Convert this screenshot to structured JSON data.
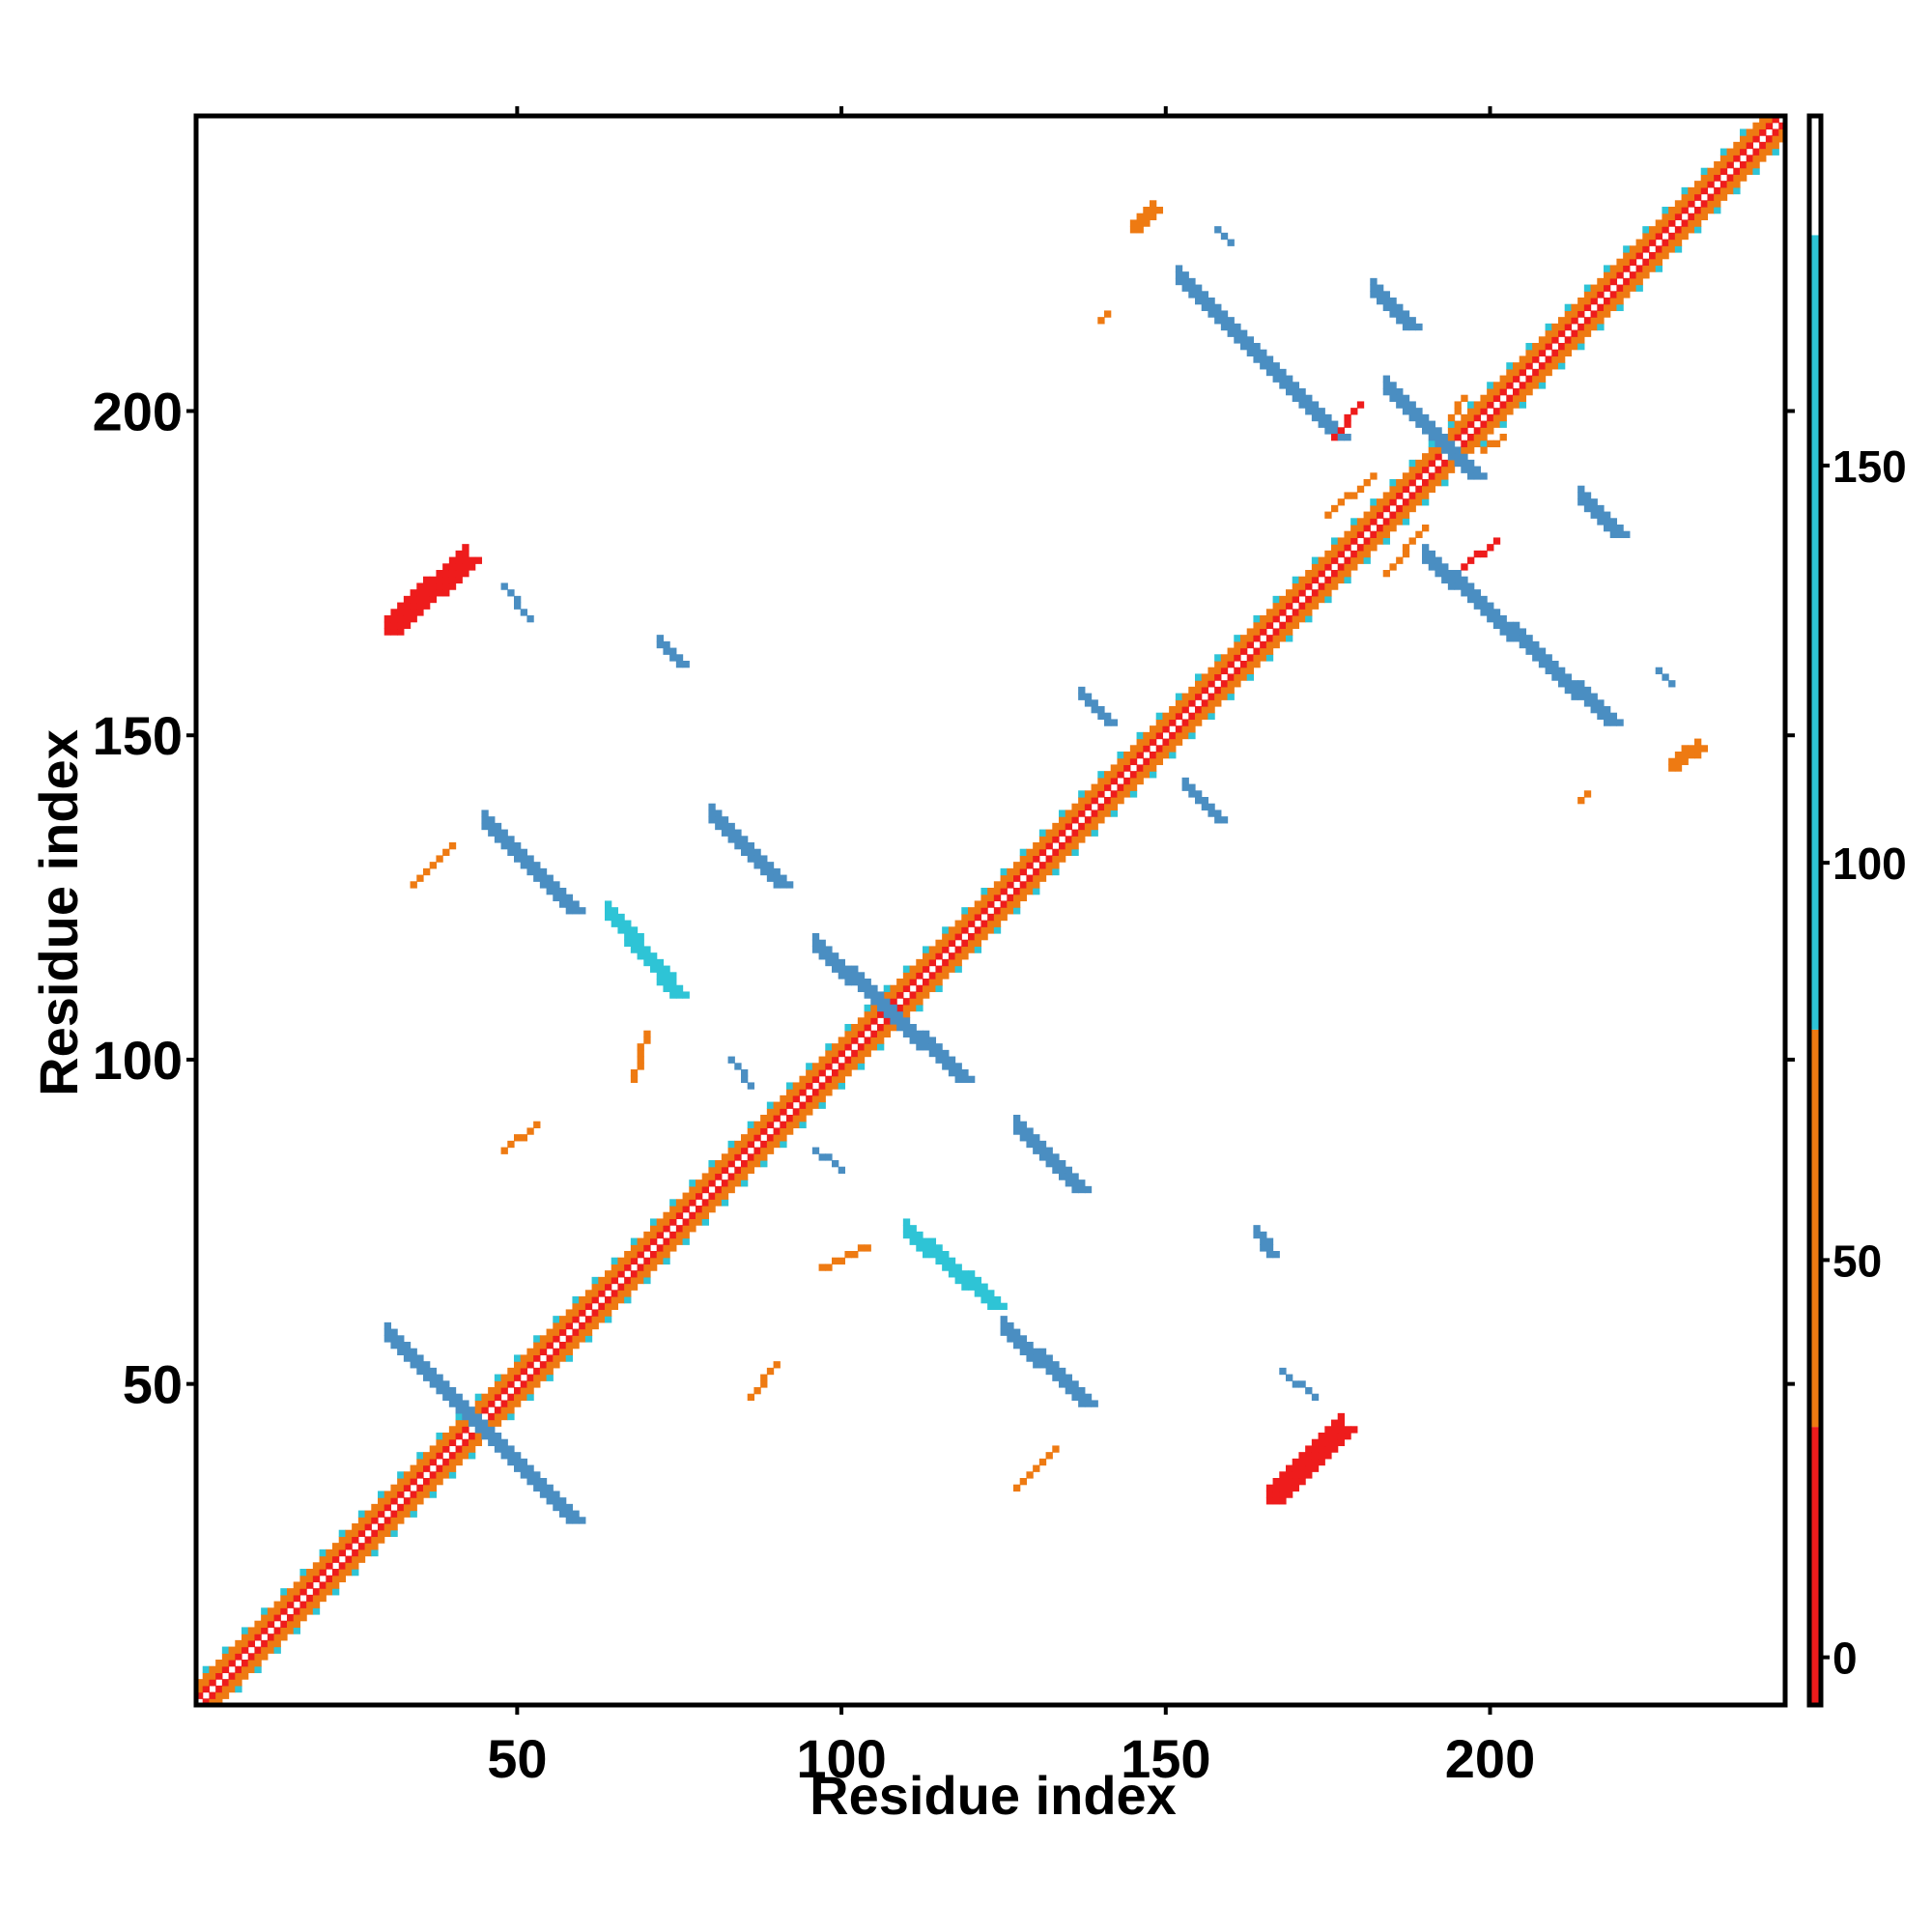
{
  "chart_data": {
    "type": "heatmap",
    "title": "",
    "xlabel": "Residue index",
    "ylabel": "Residue index",
    "xlim": [
      1,
      245
    ],
    "ylim": [
      1,
      245
    ],
    "x_ticks": [
      50,
      100,
      150,
      200
    ],
    "y_ticks": [
      50,
      100,
      150,
      200
    ],
    "grid": false,
    "colorbar": {
      "position": "right",
      "ticks": [
        0,
        50,
        100,
        150
      ],
      "range": [
        -6,
        194
      ],
      "segments": [
        {
          "from": -6,
          "to": 29,
          "color": "#ee1c1c"
        },
        {
          "from": 29,
          "to": 79,
          "color": "#ee7a12"
        },
        {
          "from": 79,
          "to": 179,
          "color": "#2ec4d6"
        },
        {
          "from": 179,
          "to": 194,
          "color": "#ffffff"
        }
      ]
    },
    "color_classes": [
      {
        "name": "red",
        "color": "#ee1c1c"
      },
      {
        "name": "orange",
        "color": "#ee7a12"
      },
      {
        "name": "cyan",
        "color": "#2ec4d6"
      },
      {
        "name": "steel",
        "color": "#4a8ec2"
      }
    ],
    "diagonal_band": {
      "from": 1,
      "to": 245,
      "halfwidth": 4
    },
    "regions": [
      {
        "color": "steel",
        "x1": 30,
        "y1": 57,
        "x2": 58,
        "y2": 29,
        "width": 3
      },
      {
        "color": "steel",
        "x1": 127,
        "y1": 89,
        "x2": 136,
        "y2": 80,
        "width": 3
      },
      {
        "color": "cyan",
        "x1": 110,
        "y1": 73,
        "x2": 123,
        "y2": 62,
        "width": 3
      },
      {
        "color": "steel",
        "x1": 125,
        "y1": 58,
        "x2": 137,
        "y2": 47,
        "width": 3
      },
      {
        "color": "steel",
        "x1": 45,
        "y1": 136,
        "x2": 58,
        "y2": 123,
        "width": 3
      },
      {
        "color": "cyan",
        "x1": 64,
        "y1": 122,
        "x2": 74,
        "y2": 110,
        "width": 3
      },
      {
        "color": "steel",
        "x1": 80,
        "y1": 137,
        "x2": 90,
        "y2": 127,
        "width": 3
      },
      {
        "color": "steel",
        "x1": 96,
        "y1": 117,
        "x2": 118,
        "y2": 97,
        "width": 3
      },
      {
        "color": "red",
        "x1": 30,
        "y1": 166,
        "x2": 42,
        "y2": 177,
        "width": 3
      },
      {
        "color": "red",
        "x1": 166,
        "y1": 32,
        "x2": 177,
        "y2": 43,
        "width": 3
      },
      {
        "color": "steel",
        "x1": 152,
        "y1": 220,
        "x2": 176,
        "y2": 196,
        "width": 3
      },
      {
        "color": "steel",
        "x1": 184,
        "y1": 203,
        "x2": 197,
        "y2": 190,
        "width": 3
      },
      {
        "color": "steel",
        "x1": 190,
        "y1": 177,
        "x2": 218,
        "y2": 152,
        "width": 3
      },
      {
        "color": "steel",
        "x1": 182,
        "y1": 218,
        "x2": 187,
        "y2": 213,
        "width": 3
      },
      {
        "color": "steel",
        "x1": 214,
        "y1": 186,
        "x2": 219,
        "y2": 181,
        "width": 3
      },
      {
        "color": "steel",
        "x1": 137,
        "y1": 156,
        "x2": 141,
        "y2": 152,
        "width": 2
      },
      {
        "color": "steel",
        "x1": 153,
        "y1": 142,
        "x2": 158,
        "y2": 137,
        "width": 2
      },
      {
        "color": "steel",
        "x1": 72,
        "y1": 164,
        "x2": 75,
        "y2": 161,
        "width": 2
      },
      {
        "color": "steel",
        "x1": 164,
        "y1": 73,
        "x2": 166,
        "y2": 70,
        "width": 2
      },
      {
        "color": "orange",
        "x1": 145,
        "y1": 228,
        "x2": 148,
        "y2": 231,
        "width": 2
      },
      {
        "color": "orange",
        "x1": 228,
        "y1": 145,
        "x2": 232,
        "y2": 148,
        "width": 2
      },
      {
        "color": "orange",
        "x1": 34,
        "y1": 127,
        "x2": 40,
        "y2": 133,
        "width": 1
      },
      {
        "color": "orange",
        "x1": 127,
        "y1": 34,
        "x2": 133,
        "y2": 40,
        "width": 1
      },
      {
        "color": "orange",
        "x1": 48,
        "y1": 86,
        "x2": 53,
        "y2": 90,
        "width": 1
      },
      {
        "color": "orange",
        "x1": 86,
        "y1": 48,
        "x2": 90,
        "y2": 53,
        "width": 1
      },
      {
        "color": "orange",
        "x1": 97,
        "y1": 68,
        "x2": 104,
        "y2": 71,
        "width": 1
      },
      {
        "color": "orange",
        "x1": 68,
        "y1": 97,
        "x2": 70,
        "y2": 104,
        "width": 1
      },
      {
        "color": "orange",
        "x1": 175,
        "y1": 184,
        "x2": 182,
        "y2": 190,
        "width": 1
      },
      {
        "color": "orange",
        "x1": 184,
        "y1": 175,
        "x2": 190,
        "y2": 182,
        "width": 1
      },
      {
        "color": "red",
        "x1": 196,
        "y1": 176,
        "x2": 201,
        "y2": 180,
        "width": 1
      },
      {
        "color": "red",
        "x1": 176,
        "y1": 196,
        "x2": 180,
        "y2": 201,
        "width": 1
      },
      {
        "color": "orange",
        "x1": 140,
        "y1": 214,
        "x2": 141,
        "y2": 215,
        "width": 1
      },
      {
        "color": "orange",
        "x1": 214,
        "y1": 140,
        "x2": 215,
        "y2": 141,
        "width": 1
      },
      {
        "color": "orange",
        "x1": 199,
        "y1": 194,
        "x2": 202,
        "y2": 196,
        "width": 1
      },
      {
        "color": "orange",
        "x1": 194,
        "y1": 199,
        "x2": 196,
        "y2": 202,
        "width": 1
      },
      {
        "color": "steel",
        "x1": 48,
        "y1": 173,
        "x2": 52,
        "y2": 168,
        "width": 1
      },
      {
        "color": "steel",
        "x1": 173,
        "y1": 48,
        "x2": 168,
        "y2": 52,
        "width": 1
      },
      {
        "color": "steel",
        "x1": 83,
        "y1": 100,
        "x2": 86,
        "y2": 96,
        "width": 1
      },
      {
        "color": "steel",
        "x1": 100,
        "y1": 83,
        "x2": 96,
        "y2": 86,
        "width": 1
      },
      {
        "color": "steel",
        "x1": 158,
        "y1": 228,
        "x2": 160,
        "y2": 226,
        "width": 1
      },
      {
        "color": "steel",
        "x1": 228,
        "y1": 158,
        "x2": 226,
        "y2": 160,
        "width": 1
      }
    ]
  }
}
